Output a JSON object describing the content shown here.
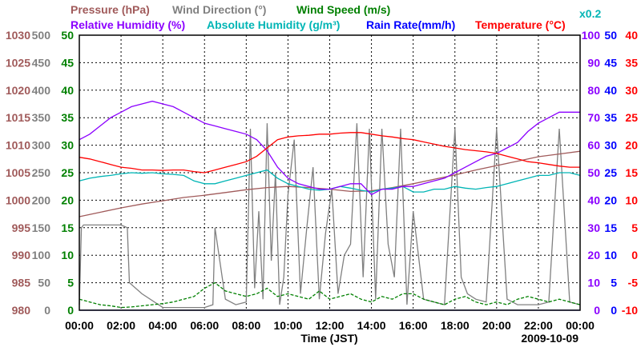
{
  "chart_data": {
    "type": "line",
    "date": "2009-10-09",
    "xlabel": "Time (JST)",
    "x_ticks": [
      "00:00",
      "02:00",
      "04:00",
      "06:00",
      "08:00",
      "10:00",
      "12:00",
      "14:00",
      "16:00",
      "18:00",
      "20:00",
      "22:00",
      "00:00"
    ],
    "grid": true,
    "axes": {
      "pressure": {
        "label": "Pressure (hPa)",
        "color": "#a05a5a",
        "min": 980,
        "max": 1030,
        "ticks": [
          1030,
          1025,
          1020,
          1015,
          1010,
          1005,
          1000,
          995,
          990,
          985,
          980
        ]
      },
      "wind_dir": {
        "label": "Wind Direction (°)",
        "color": "#808080",
        "min": 0,
        "max": 500,
        "ticks": [
          500,
          450,
          400,
          350,
          300,
          250,
          200,
          150,
          100,
          50,
          0
        ]
      },
      "wind_speed": {
        "label": "Wind Speed (m/s)",
        "color": "#008000",
        "min": 0,
        "max": 50,
        "ticks": [
          50,
          45,
          40,
          35,
          30,
          25,
          20,
          15,
          10,
          5,
          0
        ]
      },
      "rel_hum": {
        "label": "Relative Humidity (%)",
        "color": "#8b00ff",
        "min": 0,
        "max": 100,
        "ticks": [
          100,
          90,
          80,
          70,
          60,
          50,
          40,
          30,
          20,
          10,
          0
        ]
      },
      "abs_hum": {
        "label": "Absolute Humidity (g/m³)",
        "color": "#00b5b5",
        "scale_note": "x0.2",
        "min": 0,
        "max": 50,
        "ticks": [
          50,
          45,
          40,
          35,
          30,
          25,
          20,
          15,
          10,
          5,
          0
        ]
      },
      "rain": {
        "label": "Rain Rate(mm/h)",
        "color": "#0000ff",
        "min": 0,
        "max": 50,
        "ticks": [
          50,
          45,
          40,
          35,
          30,
          25,
          20,
          15,
          10,
          5,
          0
        ]
      },
      "temp": {
        "label": "Temperature (°C)",
        "color": "#ff0000",
        "min": -10,
        "max": 40,
        "ticks": [
          40,
          35,
          30,
          25,
          20,
          15,
          10,
          5,
          0,
          -5,
          -10
        ]
      }
    },
    "series": [
      {
        "name": "Pressure (hPa)",
        "axis": "pressure",
        "color": "#a05a5a",
        "x": [
          0,
          1,
          2,
          3,
          4,
          5,
          6,
          7,
          8,
          9,
          10,
          11,
          12,
          13,
          14,
          15,
          16,
          17,
          18,
          19,
          20,
          21,
          22,
          23,
          24
        ],
        "values": [
          997.0,
          997.8,
          998.6,
          999.3,
          999.9,
          1000.5,
          1000.9,
          1001.4,
          1001.9,
          1002.3,
          1002.5,
          1002.3,
          1002.0,
          1001.6,
          1001.7,
          1002.3,
          1003.0,
          1003.8,
          1004.6,
          1005.5,
          1006.3,
          1007.1,
          1007.9,
          1008.4,
          1008.9
        ]
      },
      {
        "name": "Wind Direction (°)",
        "axis": "wind_dir",
        "color": "#808080",
        "x": [
          0,
          0.1,
          0.2,
          1.0,
          2.0,
          2.3,
          2.4,
          3.0,
          4.0,
          5.0,
          6.0,
          6.4,
          6.5,
          7.0,
          7.5,
          8.0,
          8.2,
          8.4,
          8.6,
          8.8,
          9.0,
          9.2,
          9.4,
          9.6,
          9.8,
          10.0,
          10.3,
          10.6,
          10.9,
          11.2,
          11.5,
          11.8,
          12.1,
          12.4,
          12.7,
          13.0,
          13.3,
          13.6,
          13.9,
          14.2,
          14.5,
          14.8,
          15.1,
          15.4,
          15.7,
          16.0,
          16.5,
          17.0,
          17.5,
          18.0,
          18.3,
          18.6,
          19.0,
          19.5,
          20.0,
          20.5,
          21.0,
          21.5,
          22.0,
          22.5,
          23.0,
          23.5,
          24.0
        ],
        "values": [
          10,
          150,
          155,
          155,
          155,
          150,
          50,
          30,
          5,
          5,
          5,
          10,
          150,
          20,
          10,
          15,
          330,
          40,
          180,
          20,
          340,
          90,
          250,
          10,
          60,
          210,
          310,
          30,
          150,
          260,
          20,
          140,
          220,
          30,
          100,
          120,
          340,
          60,
          330,
          20,
          330,
          120,
          60,
          330,
          10,
          180,
          20,
          15,
          10,
          330,
          60,
          30,
          20,
          15,
          330,
          20,
          10,
          10,
          10,
          15,
          330,
          15,
          10
        ]
      },
      {
        "name": "Wind Speed (m/s)",
        "axis": "wind_speed",
        "color": "#008000",
        "x": [
          0,
          0.5,
          1,
          1.5,
          2,
          2.5,
          3,
          3.5,
          4,
          4.5,
          5,
          5.5,
          6,
          6.5,
          7,
          7.5,
          8,
          8.5,
          9,
          9.5,
          10,
          10.5,
          11,
          11.5,
          12,
          12.5,
          13,
          13.5,
          14,
          14.5,
          15,
          15.5,
          16,
          16.5,
          17,
          17.5,
          18,
          18.5,
          19,
          19.5,
          20,
          20.5,
          21,
          21.5,
          22,
          22.5,
          23,
          23.5,
          24
        ],
        "values": [
          2,
          1.5,
          1,
          0.8,
          0.5,
          0.6,
          0.8,
          1,
          1.2,
          1.5,
          2,
          2.5,
          4,
          5,
          3.5,
          3,
          2.5,
          3,
          4,
          2.5,
          3,
          2.5,
          2,
          3.5,
          2,
          2.5,
          3,
          2,
          1.5,
          2.5,
          2,
          3,
          3,
          2,
          1.5,
          1,
          2,
          2.5,
          1.5,
          1,
          1.5,
          1,
          2,
          2.5,
          2,
          1.5,
          2,
          1.5,
          1
        ]
      },
      {
        "name": "Relative Humidity (%)",
        "axis": "rel_hum",
        "color": "#8b00ff",
        "x": [
          0,
          0.5,
          1,
          1.5,
          2,
          2.5,
          3,
          3.5,
          4,
          4.5,
          5,
          5.5,
          6,
          6.5,
          7,
          7.5,
          8,
          8.5,
          9,
          9.5,
          10,
          10.5,
          11,
          11.5,
          12,
          12.5,
          13,
          13.5,
          14,
          14.5,
          15,
          15.5,
          16,
          16.5,
          17,
          17.5,
          18,
          18.5,
          19,
          19.5,
          20,
          20.5,
          21,
          21.5,
          22,
          22.5,
          23,
          23.5,
          24
        ],
        "values": [
          62,
          64,
          67,
          70,
          72,
          74,
          75,
          76,
          75,
          74,
          72,
          70,
          68,
          67,
          66,
          65,
          64,
          62,
          58,
          52,
          48,
          46,
          45,
          44,
          44,
          45,
          46,
          46,
          42,
          44,
          44,
          45,
          45,
          46,
          47,
          48,
          50,
          52,
          54,
          56,
          57,
          59,
          61,
          65,
          68,
          70,
          72,
          72,
          72
        ]
      },
      {
        "name": "Absolute Humidity (g/m³) x0.2",
        "axis": "abs_hum",
        "color": "#00b5b5",
        "x": [
          0,
          0.5,
          1,
          1.5,
          2,
          2.5,
          3,
          3.5,
          4,
          4.5,
          5,
          5.5,
          6,
          6.5,
          7,
          7.5,
          8,
          8.5,
          9,
          9.5,
          10,
          10.5,
          11,
          11.5,
          12,
          12.5,
          13,
          13.5,
          14,
          14.5,
          15,
          15.5,
          16,
          16.5,
          17,
          17.5,
          18,
          18.5,
          19,
          19.5,
          20,
          20.5,
          21,
          21.5,
          22,
          22.5,
          23,
          23.5,
          24
        ],
        "values": [
          23.5,
          24,
          24.3,
          24.5,
          24.8,
          25,
          24.9,
          25,
          24.8,
          24.7,
          24.5,
          23.5,
          23,
          23,
          23.5,
          24,
          24.5,
          25,
          25.5,
          24,
          23,
          22.5,
          22,
          21.8,
          22,
          22.5,
          22.2,
          21.8,
          21.5,
          22,
          22.2,
          22.5,
          21.5,
          21.5,
          22,
          22,
          22.5,
          22.2,
          22,
          22.3,
          22.5,
          23,
          23.5,
          24,
          24.5,
          24.5,
          25,
          25,
          24.5
        ]
      },
      {
        "name": "Rain Rate(mm/h)",
        "axis": "rain",
        "color": "#0000ff",
        "x": [
          0,
          24
        ],
        "values": [
          0,
          0
        ]
      },
      {
        "name": "Temperature (°C)",
        "axis": "temp",
        "color": "#ff0000",
        "x": [
          0,
          0.5,
          1,
          1.5,
          2,
          2.5,
          3,
          3.5,
          4,
          4.5,
          5,
          5.5,
          6,
          6.5,
          7,
          7.5,
          8,
          8.5,
          9,
          9.5,
          10,
          10.5,
          11,
          11.5,
          12,
          12.5,
          13,
          13.5,
          14,
          14.5,
          15,
          15.5,
          16,
          16.5,
          17,
          17.5,
          18,
          18.5,
          19,
          19.5,
          20,
          20.5,
          21,
          21.5,
          22,
          22.5,
          23,
          23.5,
          24
        ],
        "values": [
          17.8,
          17.5,
          17,
          16.5,
          16,
          15.8,
          15.5,
          15.5,
          15.4,
          15.5,
          15.5,
          15.2,
          15,
          15.5,
          16,
          16.5,
          17,
          18,
          19.5,
          21,
          21.5,
          21.7,
          21.8,
          22,
          22,
          22.2,
          22.3,
          22.3,
          22,
          21.7,
          21.5,
          21.2,
          21,
          20.6,
          20.2,
          19.8,
          19.5,
          19.2,
          19,
          18.8,
          18.5,
          18,
          17.5,
          17,
          16.8,
          16.5,
          16.2,
          16,
          16
        ]
      }
    ]
  }
}
